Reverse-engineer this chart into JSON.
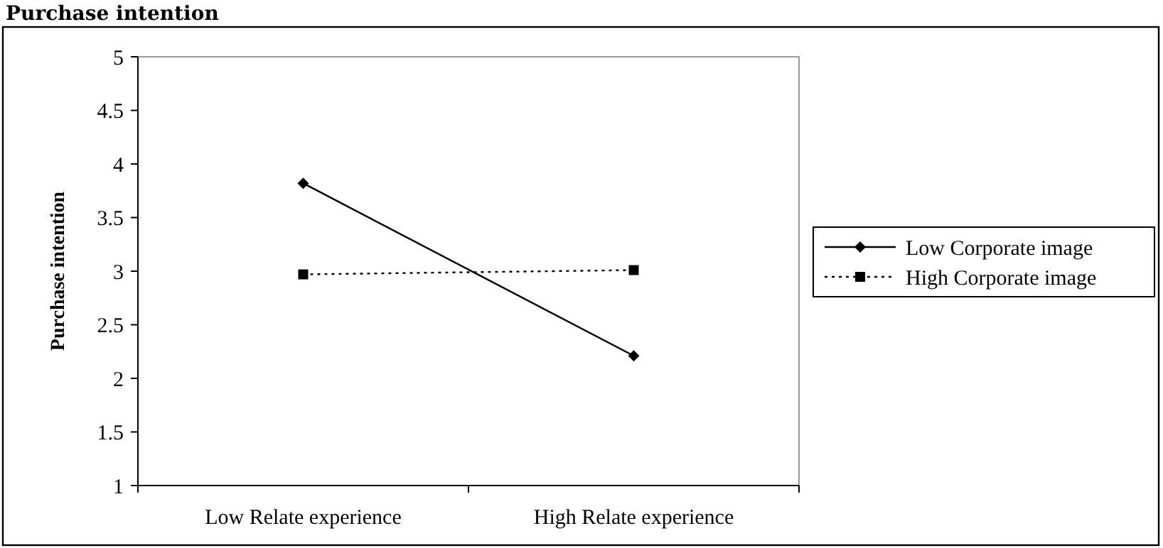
{
  "chart_data": {
    "type": "line",
    "title": "Purchase intention",
    "ylabel": "Purchase intention",
    "categories": [
      "Low Relate experience",
      "High Relate experience"
    ],
    "series": [
      {
        "name": "Low Corporate image",
        "color": "#000000",
        "values": [
          3.82,
          2.21
        ],
        "marker": "diamond",
        "line_style": "solid"
      },
      {
        "name": "High Corporate image",
        "color": "#000000",
        "values": [
          2.97,
          3.01
        ],
        "marker": "square",
        "line_style": "dotted"
      }
    ],
    "ylim": [
      1,
      5
    ],
    "yticks": [
      1,
      1.5,
      2,
      2.5,
      3,
      3.5,
      4,
      4.5,
      5
    ],
    "grid": false,
    "legend": "right"
  }
}
